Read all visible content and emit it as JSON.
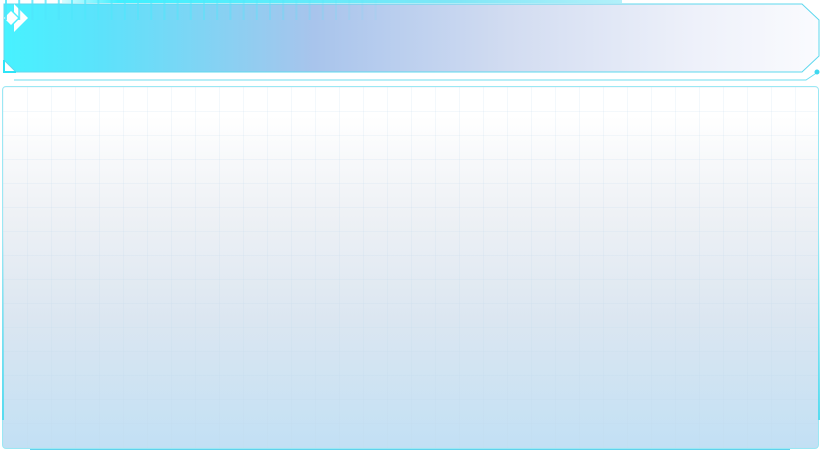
{
  "header": {
    "title": "",
    "logo_icon": "diamond-arrow-icon",
    "tick_count": 29
  },
  "panel": {
    "content": ""
  },
  "colors": {
    "accent_cyan": "#4cf0ff",
    "accent_blue": "#a7c3ec",
    "border_cyan": "#56dcf0",
    "panel_bottom": "#c2e0f4"
  }
}
